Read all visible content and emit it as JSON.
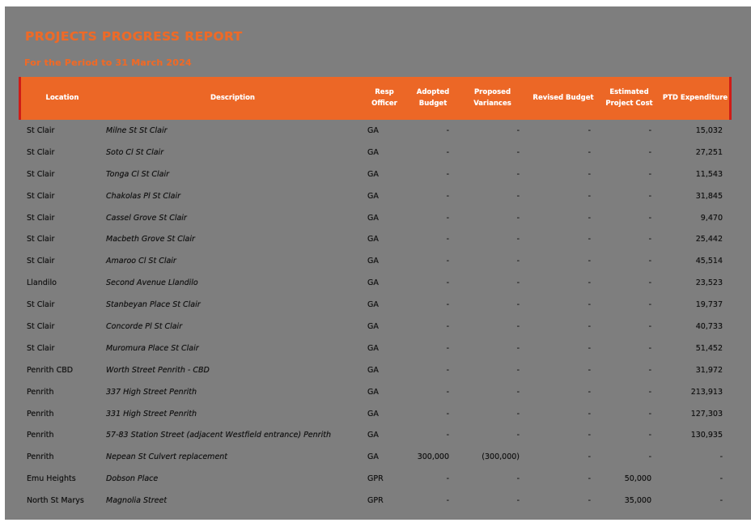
{
  "page": {
    "title": "PROJECTS PROGRESS REPORT",
    "subtitle": "For the Period to 31 March 2024"
  },
  "colors": {
    "accent_orange": "#ec6726",
    "accent_red": "#cf1c17",
    "panel_gray": "#7e7e7e",
    "header_text": "#ffffff",
    "body_text": "#131313"
  },
  "table": {
    "columns": [
      {
        "id": "location",
        "label": "Location"
      },
      {
        "id": "description",
        "label": "Description"
      },
      {
        "id": "officer",
        "label": "Resp Officer"
      },
      {
        "id": "adopted",
        "label": "Adopted Budget"
      },
      {
        "id": "proposed",
        "label": "Proposed Variances"
      },
      {
        "id": "revised",
        "label": "Revised Budget"
      },
      {
        "id": "estimated",
        "label": "Estimated Project Cost"
      },
      {
        "id": "ptd",
        "label": "PTD Expenditure"
      }
    ],
    "rows": [
      {
        "location": "St Clair",
        "description": "Milne St St Clair",
        "officer": "GA",
        "adopted": "-",
        "proposed": "-",
        "revised": "-",
        "estimated": "-",
        "ptd": "15,032"
      },
      {
        "location": "St Clair",
        "description": "Soto Cl St Clair",
        "officer": "GA",
        "adopted": "-",
        "proposed": "-",
        "revised": "-",
        "estimated": "-",
        "ptd": "27,251"
      },
      {
        "location": "St Clair",
        "description": "Tonga Cl St Clair",
        "officer": "GA",
        "adopted": "-",
        "proposed": "-",
        "revised": "-",
        "estimated": "-",
        "ptd": "11,543"
      },
      {
        "location": "St Clair",
        "description": "Chakolas Pl St Clair",
        "officer": "GA",
        "adopted": "-",
        "proposed": "-",
        "revised": "-",
        "estimated": "-",
        "ptd": "31,845"
      },
      {
        "location": "St Clair",
        "description": "Cassel Grove St Clair",
        "officer": "GA",
        "adopted": "-",
        "proposed": "-",
        "revised": "-",
        "estimated": "-",
        "ptd": "9,470"
      },
      {
        "location": "St Clair",
        "description": "Macbeth Grove St Clair",
        "officer": "GA",
        "adopted": "-",
        "proposed": "-",
        "revised": "-",
        "estimated": "-",
        "ptd": "25,442"
      },
      {
        "location": "St Clair",
        "description": "Amaroo Cl St Clair",
        "officer": "GA",
        "adopted": "-",
        "proposed": "-",
        "revised": "-",
        "estimated": "-",
        "ptd": "45,514"
      },
      {
        "location": "Llandilo",
        "description": "Second Avenue Llandilo",
        "officer": "GA",
        "adopted": "-",
        "proposed": "-",
        "revised": "-",
        "estimated": "-",
        "ptd": "23,523"
      },
      {
        "location": "St Clair",
        "description": "Stanbeyan Place St Clair",
        "officer": "GA",
        "adopted": "-",
        "proposed": "-",
        "revised": "-",
        "estimated": "-",
        "ptd": "19,737"
      },
      {
        "location": "St Clair",
        "description": "Concorde Pl St Clair",
        "officer": "GA",
        "adopted": "-",
        "proposed": "-",
        "revised": "-",
        "estimated": "-",
        "ptd": "40,733"
      },
      {
        "location": "St Clair",
        "description": "Muromura Place St Clair",
        "officer": "GA",
        "adopted": "-",
        "proposed": "-",
        "revised": "-",
        "estimated": "-",
        "ptd": "51,452"
      },
      {
        "location": "Penrith CBD",
        "description": "Worth Street Penrith - CBD",
        "officer": "GA",
        "adopted": "-",
        "proposed": "-",
        "revised": "-",
        "estimated": "-",
        "ptd": "31,972"
      },
      {
        "location": "Penrith",
        "description": "337 High Street Penrith",
        "officer": "GA",
        "adopted": "-",
        "proposed": "-",
        "revised": "-",
        "estimated": "-",
        "ptd": "213,913"
      },
      {
        "location": "Penrith",
        "description": "331 High Street Penrith",
        "officer": "GA",
        "adopted": "-",
        "proposed": "-",
        "revised": "-",
        "estimated": "-",
        "ptd": "127,303"
      },
      {
        "location": "Penrith",
        "description": "57-83 Station Street (adjacent Westfield entrance) Penrith",
        "officer": "GA",
        "adopted": "-",
        "proposed": "-",
        "revised": "-",
        "estimated": "-",
        "ptd": "130,935"
      },
      {
        "location": "Penrith",
        "description": "Nepean St Culvert replacement",
        "officer": "GA",
        "adopted": "300,000",
        "proposed": "(300,000)",
        "revised": "-",
        "estimated": "-",
        "ptd": "-"
      },
      {
        "location": "Emu Heights",
        "description": "Dobson Place",
        "officer": "GPR",
        "adopted": "-",
        "proposed": "-",
        "revised": "-",
        "estimated": "50,000",
        "ptd": "-"
      },
      {
        "location": "North St Marys",
        "description": "Magnolia Street",
        "officer": "GPR",
        "adopted": "-",
        "proposed": "-",
        "revised": "-",
        "estimated": "35,000",
        "ptd": "-"
      }
    ]
  }
}
